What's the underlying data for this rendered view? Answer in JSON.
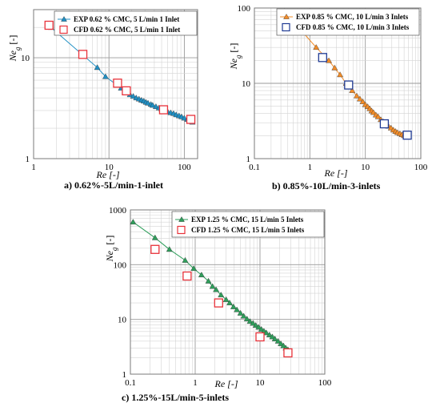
{
  "chart_data": [
    {
      "type": "scatter",
      "caption": "a)  0.62%-5L/min-1-inlet",
      "xlabel": "Re [-]",
      "ylabel": "Ne_g [-]",
      "xscale": "log",
      "yscale": "log",
      "xlim": [
        1,
        150
      ],
      "ylim": [
        1,
        30
      ],
      "xticks": [
        "1",
        "10",
        "100"
      ],
      "yticks": [
        "1",
        "10"
      ],
      "grid": true,
      "legend_position": "top-right",
      "series": [
        {
          "name": "EXP 0.62 % CMC, 5 L/min 1 Inlet",
          "marker": "triangle",
          "color": "#1f8fc4",
          "line": true,
          "x": [
            1.7,
            7.0,
            9.0,
            14.5,
            17,
            19,
            21,
            23,
            25,
            27,
            29,
            31,
            33,
            36,
            38,
            42,
            46,
            50,
            55,
            60,
            66,
            72,
            78,
            85,
            92,
            100,
            110,
            120,
            128
          ],
          "y": [
            20,
            8.0,
            6.5,
            5.0,
            4.6,
            4.3,
            4.15,
            4.0,
            3.9,
            3.8,
            3.72,
            3.62,
            3.55,
            3.45,
            3.38,
            3.28,
            3.18,
            3.1,
            3.0,
            2.92,
            2.85,
            2.8,
            2.72,
            2.66,
            2.6,
            2.52,
            2.45,
            2.38,
            2.3
          ]
        },
        {
          "name": "CFD 0.62 % CMC, 5 L/min 1 Inlet",
          "marker": "square",
          "color": "#e8323a",
          "line": false,
          "x": [
            1.6,
            4.5,
            13,
            17,
            53,
            122
          ],
          "y": [
            21,
            10.8,
            5.6,
            4.7,
            3.05,
            2.45
          ]
        }
      ]
    },
    {
      "type": "scatter",
      "caption": "b)  0.85%-10L/min-3-inlets",
      "xlabel": "Re [-]",
      "ylabel": "Ne_g [-]",
      "xscale": "log",
      "yscale": "log",
      "xlim": [
        0.1,
        100
      ],
      "ylim": [
        1,
        100
      ],
      "xticks": [
        "0.1",
        "1",
        "10",
        "100"
      ],
      "yticks": [
        "1",
        "10",
        "100"
      ],
      "grid": true,
      "legend_position": "top-right",
      "series": [
        {
          "name": "EXP 0.85 % CMC, 10 L/min 3 Inlets",
          "marker": "triangle",
          "color": "#f28c28",
          "line": true,
          "x": [
            0.35,
            1.3,
            2.2,
            2.8,
            3.5,
            4.5,
            5.8,
            7,
            8,
            9,
            10,
            11,
            12,
            13,
            14,
            15.5,
            17,
            19,
            21,
            23,
            26,
            29,
            32,
            35,
            38,
            42,
            46,
            50
          ],
          "y": [
            90,
            30,
            20,
            16,
            13,
            10,
            8,
            6.8,
            6.2,
            5.7,
            5.2,
            4.9,
            4.6,
            4.3,
            4.1,
            3.8,
            3.6,
            3.3,
            3.1,
            2.9,
            2.7,
            2.55,
            2.4,
            2.3,
            2.22,
            2.15,
            2.08,
            2.02
          ]
        },
        {
          "name": "CFD 0.85 % CMC, 10 L/min 3 Inlets",
          "marker": "square",
          "color": "#1f3a93",
          "line": false,
          "x": [
            1.7,
            5.0,
            22,
            57
          ],
          "y": [
            22,
            9.5,
            2.9,
            2.05
          ]
        }
      ]
    },
    {
      "type": "scatter",
      "caption": "c)  1.25%-15L/min-5-inlets",
      "xlabel": "Re [-]",
      "ylabel": "Ne_g [-]",
      "xscale": "log",
      "yscale": "log",
      "xlim": [
        0.1,
        100
      ],
      "ylim": [
        1,
        1000
      ],
      "xticks": [
        "0.1",
        "1",
        "10",
        "100"
      ],
      "yticks": [
        "1",
        "10",
        "100",
        "1000"
      ],
      "grid": true,
      "legend_position": "top-right",
      "series": [
        {
          "name": "EXP 1.25 % CMC, 15 L/min 5 Inlets",
          "marker": "triangle",
          "color": "#2e9e5b",
          "line": true,
          "x": [
            0.11,
            0.24,
            0.4,
            0.7,
            0.95,
            1.25,
            1.6,
            1.85,
            2.1,
            2.5,
            3.0,
            3.4,
            3.9,
            4.4,
            5.0,
            5.6,
            6.3,
            7.0,
            7.8,
            8.6,
            9.5,
            10.5,
            11.5,
            12.5,
            14,
            15.5,
            17,
            19,
            21,
            23,
            25,
            27
          ],
          "y": [
            600,
            310,
            190,
            120,
            85,
            65,
            50,
            40,
            35,
            28,
            23,
            20,
            17,
            15,
            13,
            11.5,
            10.2,
            9.2,
            8.5,
            7.8,
            7.2,
            6.6,
            6.1,
            5.7,
            5.2,
            4.8,
            4.4,
            4.0,
            3.6,
            3.3,
            3.0,
            2.8
          ]
        },
        {
          "name": "CFD 1.25 % CMC, 15 L/min 5 Inlets",
          "marker": "square",
          "color": "#e8323a",
          "line": false,
          "x": [
            0.24,
            0.75,
            2.3,
            10,
            27
          ],
          "y": [
            190,
            62,
            20,
            4.8,
            2.45
          ]
        }
      ]
    }
  ]
}
